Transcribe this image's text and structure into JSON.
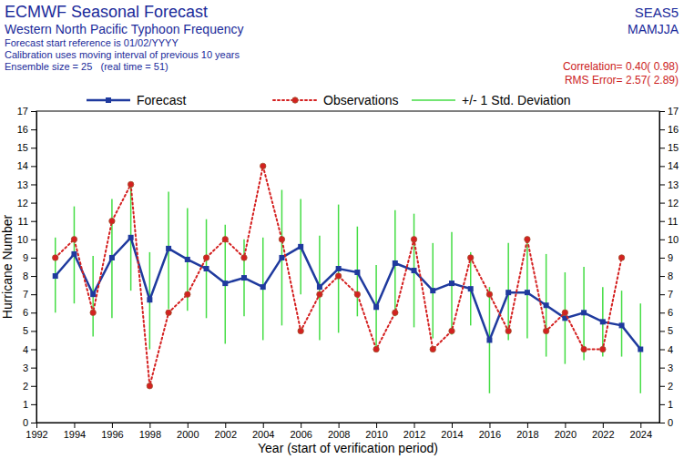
{
  "chart_data": {
    "type": "line",
    "title": "ECMWF Seasonal Forecast",
    "subtitle": "Western North Pacific Typhoon Frequency",
    "annotations": [
      "Forecast start reference is 01/02/YYYY",
      "Calibration uses moving interval of previous 10 years",
      "Ensemble size = 25   (real time = 51)",
      "SEAS5",
      "MAMJJA",
      "Correlation= 0.40( 0.98)",
      "RMS Error= 2.57( 2.89)"
    ],
    "x_label": "Year (start of verification period)",
    "y_label": "Hurricane Number",
    "x": [
      1993,
      1994,
      1995,
      1996,
      1997,
      1998,
      1999,
      2000,
      2001,
      2002,
      2003,
      2004,
      2005,
      2006,
      2007,
      2008,
      2009,
      2010,
      2011,
      2012,
      2013,
      2014,
      2015,
      2016,
      2017,
      2018,
      2019,
      2020,
      2021,
      2022,
      2023,
      2024
    ],
    "series": [
      {
        "name": "Forecast",
        "color": "#1f3a9e",
        "marker": "square",
        "line_style": "solid",
        "values": [
          8.0,
          9.2,
          7.0,
          9.0,
          10.1,
          6.7,
          9.5,
          8.9,
          8.4,
          7.6,
          7.9,
          7.4,
          9.0,
          9.6,
          7.4,
          8.4,
          8.2,
          6.3,
          8.7,
          8.3,
          7.2,
          7.6,
          7.3,
          4.5,
          7.1,
          7.1,
          6.4,
          5.7,
          6.0,
          5.5,
          5.3,
          4.0
        ]
      },
      {
        "name": "Observations",
        "color": "#d42020",
        "marker": "circle",
        "line_style": "dotted",
        "values": [
          9,
          10,
          6,
          11,
          13,
          2,
          6,
          7,
          9,
          10,
          9,
          14,
          10,
          5,
          7,
          8,
          7,
          4,
          6,
          10,
          4,
          5,
          9,
          7,
          5,
          10,
          5,
          6,
          4,
          4,
          9,
          null
        ]
      },
      {
        "name": "+/- 1 Std. Deviation",
        "color": "#44dd44",
        "type": "errorbar",
        "low": [
          6.0,
          6.5,
          4.7,
          5.7,
          7.2,
          4.0,
          6.2,
          6.1,
          5.7,
          4.3,
          5.8,
          4.5,
          5.3,
          7.0,
          4.5,
          4.9,
          5.8,
          4.1,
          5.8,
          5.2,
          4.6,
          4.8,
          5.3,
          1.6,
          4.5,
          4.6,
          3.6,
          3.2,
          3.4,
          3.6,
          3.6,
          1.6
        ],
        "high": [
          10.1,
          11.8,
          9.1,
          12.2,
          12.9,
          9.3,
          12.6,
          11.7,
          11.1,
          10.8,
          10.0,
          10.1,
          12.7,
          12.2,
          10.2,
          11.9,
          10.7,
          8.6,
          11.6,
          11.4,
          9.8,
          10.4,
          9.3,
          7.4,
          9.8,
          9.8,
          9.2,
          8.2,
          8.5,
          7.4,
          7.2,
          6.5
        ]
      }
    ],
    "xlim": [
      1992,
      2025
    ],
    "xticks": [
      1992,
      1994,
      1996,
      1998,
      2000,
      2002,
      2004,
      2006,
      2008,
      2010,
      2012,
      2014,
      2016,
      2018,
      2020,
      2022,
      2024
    ],
    "ylim": [
      0,
      17
    ],
    "yticks": [
      0,
      1,
      2,
      3,
      4,
      5,
      6,
      7,
      8,
      9,
      10,
      11,
      12,
      13,
      14,
      15,
      16,
      17
    ],
    "legend": "top",
    "grid": false
  }
}
